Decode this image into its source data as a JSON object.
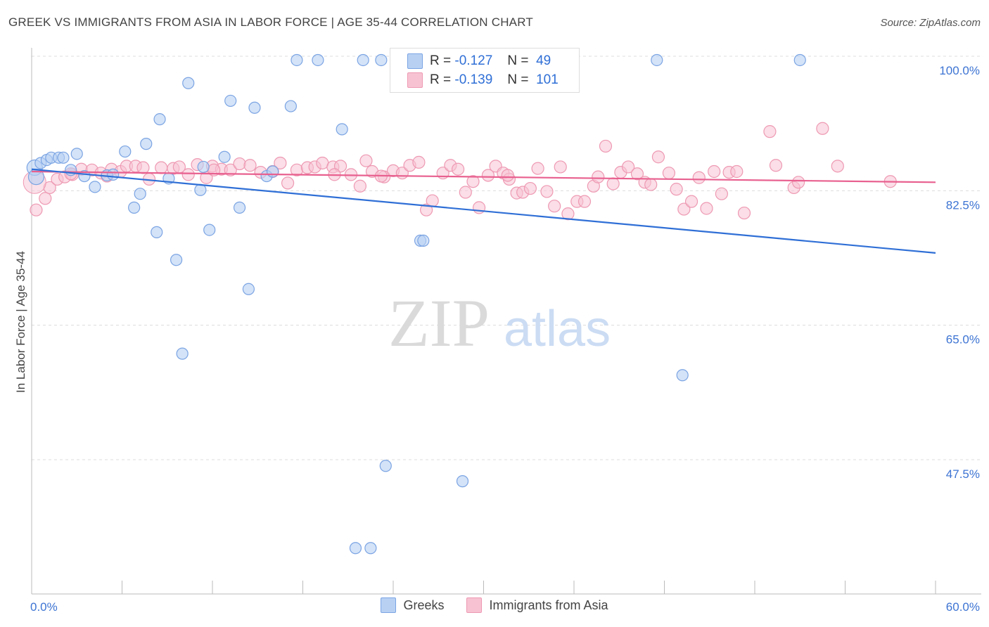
{
  "title": "GREEK VS IMMIGRANTS FROM ASIA IN LABOR FORCE | AGE 35-44 CORRELATION CHART",
  "source": "Source: ZipAtlas.com",
  "watermark": {
    "zip": "ZIP",
    "atlas": "atlas"
  },
  "stats": [
    {
      "r_label": "R =",
      "r_value": "-0.127",
      "n_label": "N =",
      "n_value": "49"
    },
    {
      "r_label": "R =",
      "r_value": "-0.139",
      "n_label": "N =",
      "n_value": "101"
    }
  ],
  "legend": {
    "greeks": "Greeks",
    "asia": "Immigrants from Asia"
  },
  "colors": {
    "greeks_fill": "#b8d1f3",
    "greeks_stroke": "#7ba4e3",
    "greeks_line": "#2f6fd6",
    "asia_fill": "#f7c3d3",
    "asia_stroke": "#ee99b3",
    "asia_line": "#e8608f",
    "tick_label": "#3d74d3"
  },
  "chart_data": {
    "type": "scatter",
    "title": "GREEK VS IMMIGRANTS FROM ASIA IN LABOR FORCE | AGE 35-44 CORRELATION CHART",
    "ylabel": "In Labor Force | Age 35-44",
    "xlabel": "",
    "xlim": [
      0,
      60
    ],
    "ylim": [
      30.0,
      101.5
    ],
    "x_tick_labels": [
      "0.0%",
      "60.0%"
    ],
    "y_ticks": [
      47.5,
      65.0,
      82.5,
      100.0
    ],
    "y_tick_labels": [
      "47.5%",
      "65.0%",
      "82.5%",
      "100.0%"
    ],
    "grid": "horizontal dashed",
    "legend_position": "bottom",
    "series": [
      {
        "name": "Greeks",
        "trend": {
          "x": [
            0,
            60
          ],
          "y": [
            85.3,
            74.4
          ]
        },
        "points": [
          [
            0.2,
            85.5
          ],
          [
            0.6,
            86.1
          ],
          [
            1.0,
            86.5
          ],
          [
            1.3,
            86.8
          ],
          [
            1.8,
            86.8
          ],
          [
            2.1,
            86.8
          ],
          [
            2.6,
            85.2
          ],
          [
            3.0,
            87.3
          ],
          [
            3.5,
            84.4
          ],
          [
            4.2,
            83.0
          ],
          [
            5.0,
            84.5
          ],
          [
            5.4,
            84.6
          ],
          [
            6.2,
            87.6
          ],
          [
            6.8,
            80.3
          ],
          [
            7.2,
            82.1
          ],
          [
            7.6,
            88.6
          ],
          [
            8.3,
            77.1
          ],
          [
            8.5,
            91.8
          ],
          [
            9.1,
            84.1
          ],
          [
            9.6,
            73.5
          ],
          [
            10.0,
            61.3
          ],
          [
            10.4,
            96.5
          ],
          [
            11.2,
            82.6
          ],
          [
            11.4,
            85.6
          ],
          [
            11.8,
            77.4
          ],
          [
            12.8,
            86.9
          ],
          [
            13.2,
            94.2
          ],
          [
            13.8,
            80.3
          ],
          [
            14.4,
            69.7
          ],
          [
            14.8,
            93.3
          ],
          [
            15.6,
            84.4
          ],
          [
            16.0,
            85.0
          ],
          [
            17.2,
            93.5
          ],
          [
            17.6,
            99.5
          ],
          [
            19.0,
            99.5
          ],
          [
            20.6,
            90.5
          ],
          [
            21.5,
            36.0
          ],
          [
            22.0,
            99.5
          ],
          [
            22.5,
            36.0
          ],
          [
            23.2,
            99.5
          ],
          [
            23.5,
            46.7
          ],
          [
            24.3,
            99.5
          ],
          [
            25.8,
            76.0
          ],
          [
            26.0,
            76.0
          ],
          [
            28.6,
            44.7
          ],
          [
            41.5,
            99.5
          ],
          [
            43.2,
            58.5
          ],
          [
            51.0,
            99.5
          ],
          [
            0.3,
            84.3
          ]
        ]
      },
      {
        "name": "Immigrants from Asia",
        "trend": {
          "x": [
            0,
            60
          ],
          "y": [
            85.0,
            83.6
          ]
        },
        "points": [
          [
            0.3,
            80.0
          ],
          [
            0.9,
            81.5
          ],
          [
            1.2,
            82.9
          ],
          [
            1.7,
            84.0
          ],
          [
            2.2,
            84.3
          ],
          [
            2.7,
            84.6
          ],
          [
            3.3,
            85.3
          ],
          [
            4.0,
            85.2
          ],
          [
            4.6,
            84.8
          ],
          [
            5.3,
            85.3
          ],
          [
            5.9,
            85.0
          ],
          [
            6.3,
            85.7
          ],
          [
            6.9,
            85.7
          ],
          [
            7.4,
            85.5
          ],
          [
            7.8,
            84.0
          ],
          [
            8.6,
            85.5
          ],
          [
            9.4,
            85.4
          ],
          [
            9.8,
            85.6
          ],
          [
            10.4,
            84.6
          ],
          [
            11.0,
            85.9
          ],
          [
            11.6,
            84.2
          ],
          [
            12.0,
            85.7
          ],
          [
            12.6,
            85.3
          ],
          [
            13.2,
            85.2
          ],
          [
            13.8,
            86.0
          ],
          [
            14.5,
            85.8
          ],
          [
            15.2,
            84.9
          ],
          [
            16.0,
            85.0
          ],
          [
            16.5,
            86.1
          ],
          [
            17.0,
            83.5
          ],
          [
            17.6,
            85.2
          ],
          [
            18.3,
            85.5
          ],
          [
            18.8,
            85.6
          ],
          [
            19.3,
            86.1
          ],
          [
            20.0,
            85.6
          ],
          [
            20.5,
            85.7
          ],
          [
            21.2,
            84.6
          ],
          [
            21.8,
            83.1
          ],
          [
            22.2,
            86.4
          ],
          [
            22.6,
            85.0
          ],
          [
            23.4,
            84.3
          ],
          [
            24.0,
            85.1
          ],
          [
            24.6,
            84.8
          ],
          [
            25.1,
            85.8
          ],
          [
            25.7,
            86.2
          ],
          [
            26.2,
            80.0
          ],
          [
            26.6,
            81.2
          ],
          [
            27.3,
            84.8
          ],
          [
            27.8,
            85.8
          ],
          [
            28.3,
            85.3
          ],
          [
            28.8,
            82.3
          ],
          [
            29.3,
            83.7
          ],
          [
            29.7,
            80.3
          ],
          [
            30.3,
            84.5
          ],
          [
            30.8,
            85.7
          ],
          [
            31.3,
            84.8
          ],
          [
            31.7,
            84.0
          ],
          [
            32.2,
            82.2
          ],
          [
            32.6,
            82.3
          ],
          [
            33.1,
            82.8
          ],
          [
            33.6,
            85.4
          ],
          [
            34.2,
            82.4
          ],
          [
            34.7,
            80.5
          ],
          [
            35.1,
            85.6
          ],
          [
            35.6,
            79.5
          ],
          [
            36.2,
            81.1
          ],
          [
            36.7,
            81.1
          ],
          [
            37.3,
            83.1
          ],
          [
            37.6,
            84.3
          ],
          [
            38.1,
            88.3
          ],
          [
            38.6,
            83.4
          ],
          [
            39.1,
            84.9
          ],
          [
            39.6,
            85.6
          ],
          [
            40.2,
            84.7
          ],
          [
            40.7,
            83.6
          ],
          [
            41.1,
            83.3
          ],
          [
            41.6,
            86.9
          ],
          [
            42.3,
            84.8
          ],
          [
            42.8,
            82.7
          ],
          [
            43.3,
            80.1
          ],
          [
            43.8,
            81.1
          ],
          [
            44.3,
            84.2
          ],
          [
            44.8,
            80.2
          ],
          [
            45.3,
            85.0
          ],
          [
            45.8,
            82.1
          ],
          [
            46.3,
            84.9
          ],
          [
            46.8,
            85.0
          ],
          [
            47.3,
            79.6
          ],
          [
            49.0,
            90.2
          ],
          [
            49.4,
            85.8
          ],
          [
            50.6,
            82.9
          ],
          [
            50.9,
            83.6
          ],
          [
            52.5,
            90.6
          ],
          [
            53.5,
            85.7
          ],
          [
            57.0,
            83.7
          ],
          [
            2.6,
            84.7
          ],
          [
            5.0,
            84.4
          ],
          [
            12.1,
            85.2
          ],
          [
            20.1,
            84.6
          ],
          [
            23.2,
            84.4
          ],
          [
            31.6,
            84.5
          ]
        ]
      }
    ]
  }
}
